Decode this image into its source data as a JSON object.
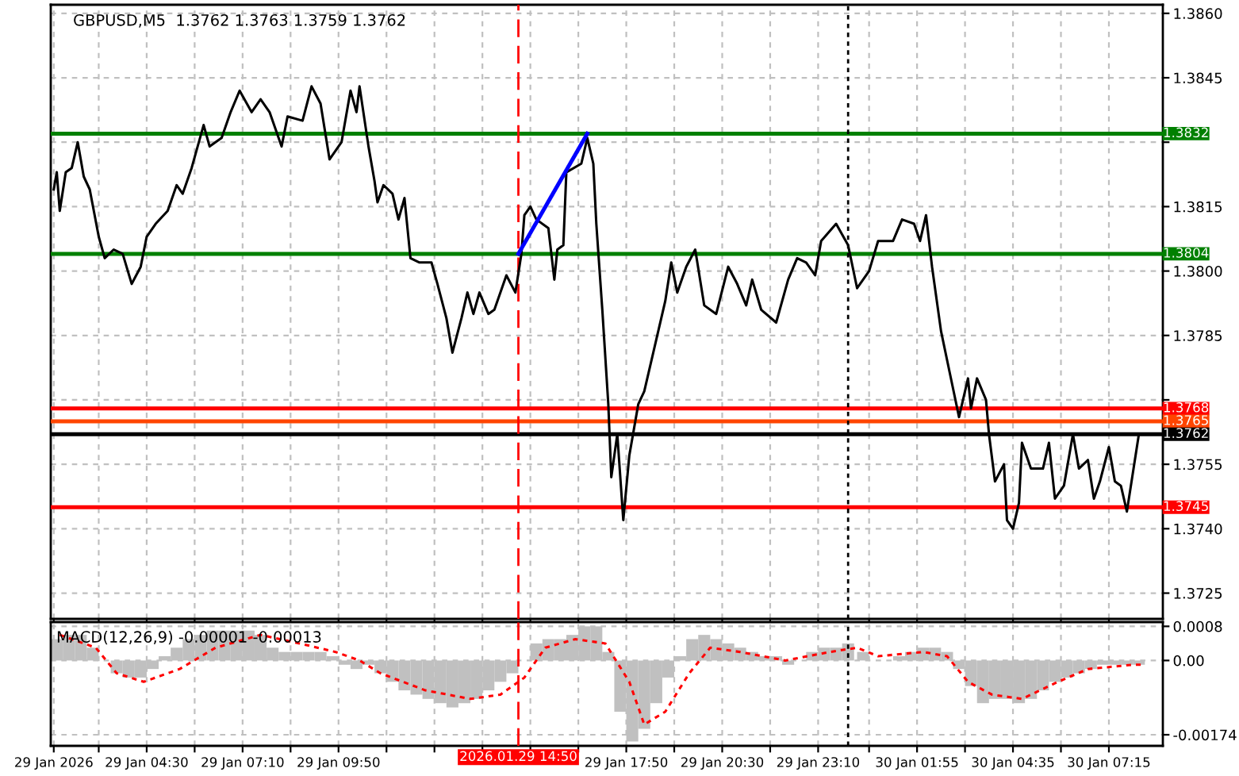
{
  "chart_data": [
    {
      "type": "line",
      "title": "GBPUSD,M5  1.3762 1.3763 1.3759 1.3762",
      "tick_labels": "y",
      "grid": true,
      "xlim": [
        "2026-01-29T01:50",
        "2026-01-30T08:45"
      ],
      "ylim": [
        1.3719,
        1.3862
      ],
      "xticks": [
        {
          "value": "2026-01-29T01:55",
          "label": null
        },
        {
          "value": "2026-01-29T03:10",
          "label": null
        },
        {
          "value": "2026-01-29T04:30",
          "label": null
        },
        {
          "value": "2026-01-29T05:50",
          "label": null
        },
        {
          "value": "2026-01-29T07:10",
          "label": null
        },
        {
          "value": "2026-01-29T08:30",
          "label": null
        },
        {
          "value": "2026-01-29T09:50",
          "label": null
        },
        {
          "value": "2026-01-29T11:10",
          "label": null
        },
        {
          "value": "2026-01-29T12:30",
          "label": null
        },
        {
          "value": "2026-01-29T13:50",
          "label": null
        },
        {
          "value": "2026-01-29T15:10",
          "label": null
        },
        {
          "value": "2026-01-29T16:30",
          "label": null
        },
        {
          "value": "2026-01-29T17:50",
          "label": null
        },
        {
          "value": "2026-01-29T19:10",
          "label": null
        },
        {
          "value": "2026-01-29T20:30",
          "label": null
        },
        {
          "value": "2026-01-29T21:50",
          "label": null
        },
        {
          "value": "2026-01-29T23:10",
          "label": null
        },
        {
          "value": "2026-01-30T00:35",
          "label": null
        },
        {
          "value": "2026-01-30T01:55",
          "label": null
        },
        {
          "value": "2026-01-30T03:15",
          "label": null
        },
        {
          "value": "2026-01-30T04:35",
          "label": null
        },
        {
          "value": "2026-01-30T05:55",
          "label": null
        },
        {
          "value": "2026-01-30T07:15",
          "label": null
        }
      ],
      "yticks": [
        {
          "value": 1.386,
          "label": "1.3860"
        },
        {
          "value": 1.3845,
          "label": "1.3845"
        },
        {
          "value": 1.383,
          "label": null
        },
        {
          "value": 1.3815,
          "label": "1.3815"
        },
        {
          "value": 1.38,
          "label": "1.3800"
        },
        {
          "value": 1.3785,
          "label": "1.3785"
        },
        {
          "value": 1.377,
          "label": null
        },
        {
          "value": 1.3755,
          "label": "1.3755"
        },
        {
          "value": 1.374,
          "label": "1.3740"
        },
        {
          "value": 1.3725,
          "label": "1.3725"
        }
      ],
      "ref_lines": [
        {
          "axis": "y",
          "value": 1.3832,
          "label": "1.3832",
          "color": "#008000"
        },
        {
          "axis": "y",
          "value": 1.3804,
          "label": "1.3804",
          "color": "#008000"
        },
        {
          "axis": "y",
          "value": 1.3768,
          "label": "1.3768",
          "color": "#ff0000"
        },
        {
          "axis": "y",
          "value": 1.3765,
          "label": "1.3765",
          "color": "#ff4500"
        },
        {
          "axis": "y",
          "value": 1.3762,
          "label": "1.3762",
          "color": "#000000"
        },
        {
          "axis": "y",
          "value": 1.3745,
          "label": "1.3745",
          "color": "#ff0000"
        },
        {
          "axis": "x",
          "value": "2026-01-29T14:50",
          "color": "#ff0000",
          "line_style": "dashed"
        },
        {
          "axis": "x",
          "value": "2026-01-30T00:00",
          "color": "#000000",
          "line_style": "dotted"
        }
      ],
      "series": [
        {
          "color": "#000000",
          "x": [
            "2026-01-29T01:55",
            "2026-01-29T02:00",
            "2026-01-29T02:05",
            "2026-01-29T02:15",
            "2026-01-29T02:25",
            "2026-01-29T02:35",
            "2026-01-29T02:45",
            "2026-01-29T02:55",
            "2026-01-29T03:10",
            "2026-01-29T03:20",
            "2026-01-29T03:35",
            "2026-01-29T03:50",
            "2026-01-29T04:05",
            "2026-01-29T04:20",
            "2026-01-29T04:30",
            "2026-01-29T04:45",
            "2026-01-29T05:05",
            "2026-01-29T05:20",
            "2026-01-29T05:30",
            "2026-01-29T05:45",
            "2026-01-29T06:05",
            "2026-01-29T06:15",
            "2026-01-29T06:35",
            "2026-01-29T06:50",
            "2026-01-29T07:05",
            "2026-01-29T07:25",
            "2026-01-29T07:40",
            "2026-01-29T07:55",
            "2026-01-29T08:15",
            "2026-01-29T08:25",
            "2026-01-29T08:50",
            "2026-01-29T09:05",
            "2026-01-29T09:20",
            "2026-01-29T09:35",
            "2026-01-29T09:55",
            "2026-01-29T10:10",
            "2026-01-29T10:20",
            "2026-01-29T10:25",
            "2026-01-29T10:40",
            "2026-01-29T10:50",
            "2026-01-29T10:55",
            "2026-01-29T11:05",
            "2026-01-29T11:20",
            "2026-01-29T11:30",
            "2026-01-29T11:40",
            "2026-01-29T11:50",
            "2026-01-29T12:05",
            "2026-01-29T12:25",
            "2026-01-29T12:35",
            "2026-01-29T12:50",
            "2026-01-29T13:00",
            "2026-01-29T13:15",
            "2026-01-29T13:25",
            "2026-01-29T13:35",
            "2026-01-29T13:45",
            "2026-01-29T14:00",
            "2026-01-29T14:10",
            "2026-01-29T14:30",
            "2026-01-29T14:45",
            "2026-01-29T14:55",
            "2026-01-29T15:00",
            "2026-01-29T15:10",
            "2026-01-29T15:20",
            "2026-01-29T15:40",
            "2026-01-29T15:50",
            "2026-01-29T15:55",
            "2026-01-29T16:05",
            "2026-01-29T16:10",
            "2026-01-29T16:35",
            "2026-01-29T16:45",
            "2026-01-29T16:55",
            "2026-01-29T17:00",
            "2026-01-29T17:10",
            "2026-01-29T17:20",
            "2026-01-29T17:25",
            "2026-01-29T17:35",
            "2026-01-29T17:45",
            "2026-01-29T17:55",
            "2026-01-29T18:10",
            "2026-01-29T18:20",
            "2026-01-29T18:40",
            "2026-01-29T18:55",
            "2026-01-29T19:05",
            "2026-01-29T19:15",
            "2026-01-29T19:30",
            "2026-01-29T19:45",
            "2026-01-29T20:00",
            "2026-01-29T20:20",
            "2026-01-29T20:40",
            "2026-01-29T20:55",
            "2026-01-29T21:10",
            "2026-01-29T21:20",
            "2026-01-29T21:35",
            "2026-01-29T22:00",
            "2026-01-29T22:20",
            "2026-01-29T22:35",
            "2026-01-29T22:50",
            "2026-01-29T23:05",
            "2026-01-29T23:15",
            "2026-01-29T23:40",
            "2026-01-30T00:00",
            "2026-01-30T00:15",
            "2026-01-30T00:35",
            "2026-01-30T00:50",
            "2026-01-30T01:15",
            "2026-01-30T01:30",
            "2026-01-30T01:50",
            "2026-01-30T02:00",
            "2026-01-30T02:10",
            "2026-01-30T02:20",
            "2026-01-30T02:35",
            "2026-01-30T02:50",
            "2026-01-30T03:05",
            "2026-01-30T03:20",
            "2026-01-30T03:25",
            "2026-01-30T03:35",
            "2026-01-30T03:50",
            "2026-01-30T03:55",
            "2026-01-30T04:05",
            "2026-01-30T04:20",
            "2026-01-30T04:25",
            "2026-01-30T04:35",
            "2026-01-30T04:45",
            "2026-01-30T04:50",
            "2026-01-30T05:05",
            "2026-01-30T05:25",
            "2026-01-30T05:35",
            "2026-01-30T05:45",
            "2026-01-30T06:00",
            "2026-01-30T06:15",
            "2026-01-30T06:25",
            "2026-01-30T06:40",
            "2026-01-30T06:50",
            "2026-01-30T07:00",
            "2026-01-30T07:15",
            "2026-01-30T07:25",
            "2026-01-30T07:35",
            "2026-01-30T07:45",
            "2026-01-30T08:05"
          ],
          "values": [
            1.3819,
            1.3823,
            1.3814,
            1.3823,
            1.3824,
            1.383,
            1.3822,
            1.3819,
            1.3808,
            1.3803,
            1.3805,
            1.3804,
            1.3797,
            1.3801,
            1.3808,
            1.3811,
            1.3814,
            1.382,
            1.3818,
            1.3824,
            1.3834,
            1.3829,
            1.3831,
            1.3837,
            1.3842,
            1.3837,
            1.384,
            1.3837,
            1.3829,
            1.3836,
            1.3835,
            1.3843,
            1.3839,
            1.3826,
            1.383,
            1.3842,
            1.3837,
            1.3843,
            1.3829,
            1.3821,
            1.3816,
            1.382,
            1.3818,
            1.3812,
            1.3817,
            1.3803,
            1.3802,
            1.3802,
            1.3797,
            1.3789,
            1.3781,
            1.3789,
            1.3795,
            1.379,
            1.3795,
            1.379,
            1.3791,
            1.3799,
            1.3795,
            1.3804,
            1.3813,
            1.3815,
            1.3812,
            1.381,
            1.3798,
            1.3805,
            1.3806,
            1.3823,
            1.3825,
            1.3831,
            1.3825,
            1.3811,
            1.3791,
            1.3769,
            1.3752,
            1.3762,
            1.3742,
            1.3757,
            1.3769,
            1.3772,
            1.3784,
            1.3793,
            1.3802,
            1.3795,
            1.3801,
            1.3805,
            1.3792,
            1.379,
            1.3801,
            1.3797,
            1.3792,
            1.3798,
            1.3791,
            1.3788,
            1.3798,
            1.3803,
            1.3802,
            1.3799,
            1.3807,
            1.3811,
            1.3806,
            1.3796,
            1.38,
            1.3807,
            1.3807,
            1.3812,
            1.3811,
            1.3807,
            1.3813,
            1.3801,
            1.3786,
            1.3776,
            1.3766,
            1.3775,
            1.3768,
            1.3775,
            1.377,
            1.3762,
            1.3751,
            1.3755,
            1.3742,
            1.374,
            1.3746,
            1.376,
            1.3754,
            1.3754,
            1.376,
            1.3747,
            1.375,
            1.3762,
            1.3754,
            1.3756,
            1.3747,
            1.3751,
            1.3759,
            1.3751,
            1.375,
            1.3744,
            1.3762
          ]
        },
        {
          "color": "#0000ff",
          "x": [
            "2026-01-29T14:50",
            "2026-01-29T16:45"
          ],
          "values": [
            1.3804,
            1.3832
          ]
        }
      ]
    },
    {
      "type": "bar",
      "title": "MACD(12,26,9) -0.00001 -0.00013",
      "grid": true,
      "xlim": [
        "2026-01-29T01:50",
        "2026-01-30T08:45"
      ],
      "ylim": [
        -0.002,
        0.0009
      ],
      "xticks": [
        {
          "value": "2026-01-29T01:55",
          "label": "29 Jan 2026"
        },
        {
          "value": "2026-01-29T03:10",
          "label": null
        },
        {
          "value": "2026-01-29T04:30",
          "label": "29 Jan 04:30"
        },
        {
          "value": "2026-01-29T05:50",
          "label": null
        },
        {
          "value": "2026-01-29T07:10",
          "label": "29 Jan 07:10"
        },
        {
          "value": "2026-01-29T08:30",
          "label": null
        },
        {
          "value": "2026-01-29T09:50",
          "label": "29 Jan 09:50"
        },
        {
          "value": "2026-01-29T11:10",
          "label": null
        },
        {
          "value": "2026-01-29T12:30",
          "label": null
        },
        {
          "value": "2026-01-29T13:50",
          "label": null
        },
        {
          "value": "2026-01-29T15:10",
          "label": null
        },
        {
          "value": "2026-01-29T16:30",
          "label": null
        },
        {
          "value": "2026-01-29T17:50",
          "label": "29 Jan 17:50"
        },
        {
          "value": "2026-01-29T19:10",
          "label": null
        },
        {
          "value": "2026-01-29T20:30",
          "label": "29 Jan 20:30"
        },
        {
          "value": "2026-01-29T21:50",
          "label": null
        },
        {
          "value": "2026-01-29T23:10",
          "label": "29 Jan 23:10"
        },
        {
          "value": "2026-01-30T00:35",
          "label": null
        },
        {
          "value": "2026-01-30T01:55",
          "label": "30 Jan 01:55"
        },
        {
          "value": "2026-01-30T03:15",
          "label": null
        },
        {
          "value": "2026-01-30T04:35",
          "label": "30 Jan 04:35"
        },
        {
          "value": "2026-01-30T05:55",
          "label": null
        },
        {
          "value": "2026-01-30T07:15",
          "label": "30 Jan 07:15"
        }
      ],
      "yticks": [
        {
          "value": 0.0008,
          "label": "0.0008"
        },
        {
          "value": 0,
          "label": "0.00"
        },
        {
          "value": -0.00174,
          "label": "-0.00174"
        }
      ],
      "ref_lines": [
        {
          "axis": "x",
          "value": "2026-01-29T14:50",
          "label": "2026.01.29 14:50",
          "color": "#ff0000",
          "line_style": "dashed"
        },
        {
          "axis": "x",
          "value": "2026-01-30T00:00",
          "color": "#000000",
          "line_style": "dotted"
        }
      ],
      "series": [
        {
          "color": "#c0c0c0",
          "x": [
            "2026-01-29T02:00",
            "2026-01-29T02:20",
            "2026-01-29T02:40",
            "2026-01-29T03:00",
            "2026-01-29T03:20",
            "2026-01-29T03:40",
            "2026-01-29T04:00",
            "2026-01-29T04:20",
            "2026-01-29T04:40",
            "2026-01-29T05:00",
            "2026-01-29T05:20",
            "2026-01-29T05:40",
            "2026-01-29T06:00",
            "2026-01-29T06:20",
            "2026-01-29T06:40",
            "2026-01-29T07:00",
            "2026-01-29T07:20",
            "2026-01-29T07:40",
            "2026-01-29T08:00",
            "2026-01-29T08:20",
            "2026-01-29T08:40",
            "2026-01-29T09:00",
            "2026-01-29T09:20",
            "2026-01-29T09:40",
            "2026-01-29T10:00",
            "2026-01-29T10:20",
            "2026-01-29T10:40",
            "2026-01-29T11:00",
            "2026-01-29T11:20",
            "2026-01-29T11:40",
            "2026-01-29T12:00",
            "2026-01-29T12:20",
            "2026-01-29T12:40",
            "2026-01-29T13:00",
            "2026-01-29T13:20",
            "2026-01-29T13:40",
            "2026-01-29T14:00",
            "2026-01-29T14:20",
            "2026-01-29T14:40",
            "2026-01-29T15:00",
            "2026-01-29T15:20",
            "2026-01-29T15:40",
            "2026-01-29T16:00",
            "2026-01-29T16:20",
            "2026-01-29T16:40",
            "2026-01-29T17:00",
            "2026-01-29T17:20",
            "2026-01-29T17:40",
            "2026-01-29T18:00",
            "2026-01-29T18:20",
            "2026-01-29T18:40",
            "2026-01-29T19:00",
            "2026-01-29T19:20",
            "2026-01-29T19:40",
            "2026-01-29T20:00",
            "2026-01-29T20:20",
            "2026-01-29T20:40",
            "2026-01-29T21:00",
            "2026-01-29T21:20",
            "2026-01-29T21:40",
            "2026-01-29T22:00",
            "2026-01-29T22:20",
            "2026-01-29T22:40",
            "2026-01-29T23:00",
            "2026-01-29T23:20",
            "2026-01-29T23:40",
            "2026-01-30T00:00",
            "2026-01-30T00:25",
            "2026-01-30T00:45",
            "2026-01-30T01:05",
            "2026-01-30T01:25",
            "2026-01-30T01:45",
            "2026-01-30T02:05",
            "2026-01-30T02:25",
            "2026-01-30T02:45",
            "2026-01-30T03:05",
            "2026-01-30T03:25",
            "2026-01-30T03:45",
            "2026-01-30T04:05",
            "2026-01-30T04:25",
            "2026-01-30T04:45",
            "2026-01-30T05:05",
            "2026-01-30T05:25",
            "2026-01-30T05:45",
            "2026-01-30T06:05",
            "2026-01-30T06:25",
            "2026-01-30T06:45",
            "2026-01-30T07:05",
            "2026-01-30T07:25",
            "2026-01-30T07:45",
            "2026-01-30T08:05"
          ],
          "values": [
            0.0005,
            0.0006,
            0.0006,
            0.0003,
            0.0,
            -0.0003,
            -0.0004,
            -0.0004,
            -0.0002,
            0.0001,
            0.0003,
            0.0005,
            0.0006,
            0.0007,
            0.0007,
            0.0007,
            0.0007,
            0.0006,
            0.0003,
            0.0002,
            0.0002,
            0.0002,
            0.0002,
            0.0001,
            -0.0001,
            -0.0002,
            -0.0001,
            -0.0003,
            -0.0005,
            -0.0007,
            -0.0008,
            -0.0009,
            -0.001,
            -0.0011,
            -0.001,
            -0.0009,
            -0.0007,
            -0.0005,
            -0.0003,
            0.0,
            0.0004,
            0.0005,
            0.0005,
            0.0006,
            0.0008,
            0.0008,
            0.0002,
            -0.0012,
            -0.0019,
            -0.0016,
            -0.001,
            -0.0004,
            0.0001,
            0.0005,
            0.0006,
            0.0005,
            0.0004,
            0.0003,
            0.0002,
            0.0001,
            0.0001,
            -0.0001,
            0.0,
            0.0002,
            0.0003,
            0.0003,
            0.0004,
            0.0002,
            0.0,
            0.0,
            0.0001,
            0.0002,
            0.0003,
            0.0003,
            0.0002,
            -0.0002,
            -0.0006,
            -0.001,
            -0.0009,
            -0.0009,
            -0.001,
            -0.0009,
            -0.0007,
            -0.0005,
            -0.0004,
            -0.0003,
            -0.0002,
            -0.0001,
            -0.0001,
            -0.0001,
            -0.0001
          ]
        },
        {
          "type": "line",
          "color": "#ff0000",
          "line_style": "dotted",
          "x": [
            "2026-01-29T02:05",
            "2026-01-29T03:05",
            "2026-01-29T03:40",
            "2026-01-29T04:25",
            "2026-01-29T05:25",
            "2026-01-29T06:25",
            "2026-01-29T07:40",
            "2026-01-29T08:45",
            "2026-01-29T09:45",
            "2026-01-29T10:25",
            "2026-01-29T11:00",
            "2026-01-29T12:15",
            "2026-01-29T13:30",
            "2026-01-29T14:20",
            "2026-01-29T15:00",
            "2026-01-29T15:35",
            "2026-01-29T16:25",
            "2026-01-29T17:15",
            "2026-01-29T17:55",
            "2026-01-29T18:20",
            "2026-01-29T18:55",
            "2026-01-29T19:35",
            "2026-01-29T20:10",
            "2026-01-29T21:00",
            "2026-01-29T22:15",
            "2026-01-29T23:30",
            "2026-01-30T00:15",
            "2026-01-30T00:50",
            "2026-01-30T02:05",
            "2026-01-30T02:45",
            "2026-01-30T03:20",
            "2026-01-30T04:00",
            "2026-01-30T04:50",
            "2026-01-30T05:50",
            "2026-01-30T06:40",
            "2026-01-30T07:55",
            "2026-01-30T08:15"
          ],
          "values": [
            0.0006,
            0.0003,
            -0.0003,
            -0.0005,
            -0.0002,
            0.0003,
            0.0006,
            0.0004,
            0.0002,
            0.0,
            -0.0003,
            -0.0007,
            -0.0009,
            -0.0008,
            -0.0004,
            0.0003,
            0.0005,
            0.0004,
            -0.0005,
            -0.0015,
            -0.0012,
            -0.0003,
            0.0003,
            0.0002,
            0.0,
            0.0002,
            0.0003,
            0.0001,
            0.0002,
            0.0001,
            -0.0005,
            -0.0008,
            -0.0009,
            -0.0005,
            -0.0002,
            -0.0001,
            -0.0001
          ]
        }
      ]
    }
  ]
}
